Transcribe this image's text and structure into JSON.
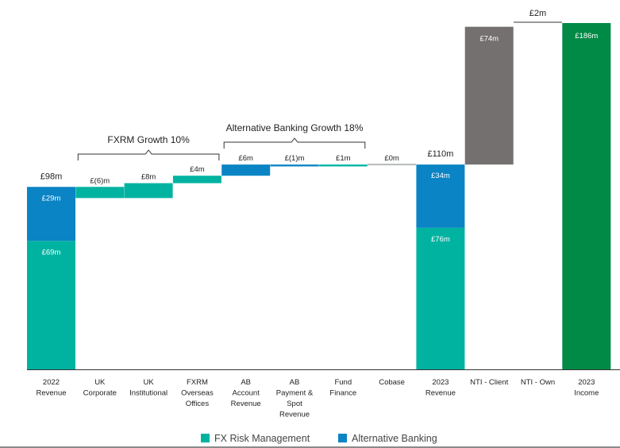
{
  "chart_data": {
    "type": "bar",
    "subtype": "waterfall",
    "unit": "£m",
    "categories": [
      [
        "2022",
        "Revenue"
      ],
      [
        "UK",
        "Corporate"
      ],
      [
        "UK",
        "Institutional"
      ],
      [
        "FXRM",
        "Overseas",
        "Offices"
      ],
      [
        "AB",
        "Account",
        "Revenue"
      ],
      [
        "AB",
        "Payment &",
        "Spot",
        "Revenue"
      ],
      [
        "Fund",
        "Finance"
      ],
      [
        "Cobase"
      ],
      [
        "2023",
        "Revenue"
      ],
      [
        "NTI - Client"
      ],
      [
        "NTI - Own"
      ],
      [
        "2023",
        "Income"
      ]
    ],
    "bars": [
      {
        "segments": [
          {
            "series": "FX Risk Management",
            "from": 0,
            "to": 69,
            "label": "£69m"
          },
          {
            "series": "Alternative Banking",
            "from": 69,
            "to": 98,
            "label": "£29m"
          }
        ],
        "total_label": "£98m"
      },
      {
        "segments": [
          {
            "series": "FX Risk Management",
            "from": 92,
            "to": 98,
            "label": "£(6)m"
          }
        ]
      },
      {
        "segments": [
          {
            "series": "FX Risk Management",
            "from": 92,
            "to": 100,
            "label": "£8m"
          }
        ]
      },
      {
        "segments": [
          {
            "series": "FX Risk Management",
            "from": 100,
            "to": 104,
            "label": "£4m"
          }
        ]
      },
      {
        "segments": [
          {
            "series": "Alternative Banking",
            "from": 104,
            "to": 110,
            "label": "£6m"
          }
        ]
      },
      {
        "segments": [
          {
            "series": "Alternative Banking",
            "from": 109,
            "to": 110,
            "label": "£(1)m"
          }
        ]
      },
      {
        "segments": [
          {
            "series": "FX Risk Management",
            "from": 109,
            "to": 110,
            "label": "£1m"
          }
        ]
      },
      {
        "segments": [
          {
            "series": "Cobase",
            "from": 110,
            "to": 110,
            "label": "£0m"
          }
        ]
      },
      {
        "segments": [
          {
            "series": "FX Risk Management",
            "from": 0,
            "to": 76,
            "label": "£76m"
          },
          {
            "series": "Alternative Banking",
            "from": 76,
            "to": 110,
            "label": "£34m"
          }
        ],
        "total_label": "£110m"
      },
      {
        "segments": [
          {
            "series": "NTI - Client",
            "from": 110,
            "to": 184,
            "label": "£74m"
          }
        ]
      },
      {
        "segments": [
          {
            "series": "NTI - Own",
            "from": 184,
            "to": 186,
            "label": "£2m"
          }
        ]
      },
      {
        "segments": [
          {
            "series": "2023 Income",
            "from": 0,
            "to": 186,
            "label": "£186m"
          }
        ]
      }
    ],
    "groups": [
      {
        "label": "FXRM Growth 10%",
        "from_index": 1,
        "to_index": 3
      },
      {
        "label": "Alternative Banking Growth 18%",
        "from_index": 4,
        "to_index": 6
      }
    ],
    "colors": {
      "FX Risk Management": "#00b3a1",
      "Alternative Banking": "#0a84c4",
      "Cobase": "#b5b9bd",
      "NTI - Client": "#757070",
      "NTI - Own": "#ffffff",
      "2023 Income": "#008a46",
      "axis": "#333333"
    },
    "legend": {
      "position": "bottom-center",
      "entries": [
        {
          "name": "FX Risk Management",
          "color": "#00b3a1"
        },
        {
          "name": "Alternative Banking",
          "color": "#0a84c4"
        }
      ]
    },
    "ylim": [
      0,
      186
    ],
    "grid": false
  }
}
